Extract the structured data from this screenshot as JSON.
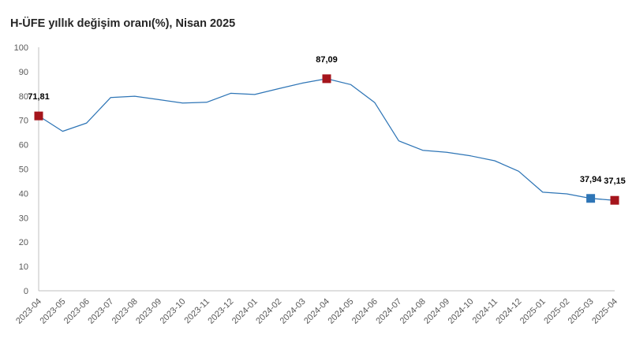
{
  "chart_data": {
    "type": "line",
    "title": "H-ÜFE yıllık değişim oranı(%), Nisan 2025",
    "xlabel": "",
    "ylabel": "",
    "ylim": [
      0,
      100
    ],
    "yticks": [
      0,
      10,
      20,
      30,
      40,
      50,
      60,
      70,
      80,
      90,
      100
    ],
    "grid": false,
    "legend": "none",
    "categories": [
      "2023-04",
      "2023-05",
      "2023-06",
      "2023-07",
      "2023-08",
      "2023-09",
      "2023-10",
      "2023-11",
      "2023-12",
      "2024-01",
      "2024-02",
      "2024-03",
      "2024-04",
      "2024-05",
      "2024-06",
      "2024-07",
      "2024-08",
      "2024-09",
      "2024-10",
      "2024-11",
      "2024-12",
      "2025-01",
      "2025-02",
      "2025-03",
      "2025-04"
    ],
    "series": [
      {
        "values": [
          71.81,
          65.5,
          68.9,
          79.4,
          79.9,
          78.5,
          77.1,
          77.4,
          81.1,
          80.6,
          83.0,
          85.3,
          87.09,
          84.7,
          77.3,
          61.6,
          57.7,
          56.9,
          55.4,
          53.4,
          49.1,
          40.5,
          39.8,
          37.94,
          37.15
        ],
        "color": "#2e75b6"
      }
    ],
    "highlights": [
      {
        "index": 0,
        "label": "71,81",
        "color": "#a5151c"
      },
      {
        "index": 12,
        "label": "87,09",
        "color": "#a5151c"
      },
      {
        "index": 23,
        "label": "37,94",
        "color": "#2e75b6"
      },
      {
        "index": 24,
        "label": "37,15",
        "color": "#a5151c"
      }
    ],
    "axis_color": "#bfbfbf"
  }
}
